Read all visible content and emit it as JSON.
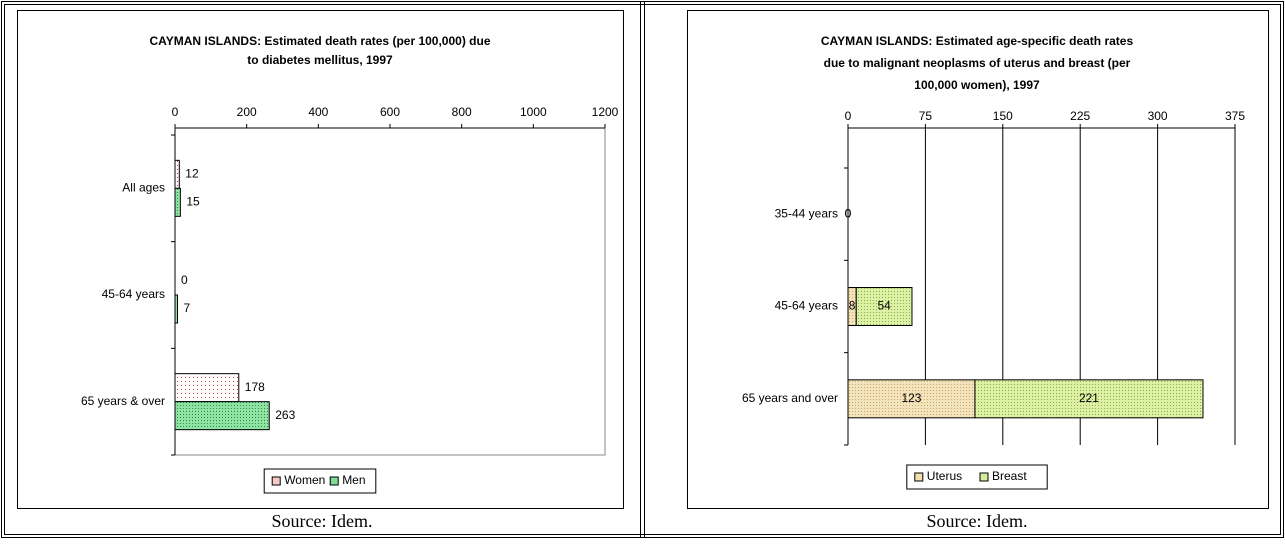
{
  "chart_data": [
    {
      "type": "bar",
      "title": [
        "CAYMAN ISLANDS: Estimated death rates (per 100,000) due",
        "to diabetes mellitus, 1997"
      ],
      "categories": [
        "All ages",
        "45-64 years",
        "65 years & over"
      ],
      "series": [
        {
          "name": "Women",
          "color": "#f6c9c9",
          "values": [
            12,
            0,
            178
          ]
        },
        {
          "name": "Men",
          "color": "#7fdc95",
          "values": [
            15,
            7,
            263
          ]
        }
      ],
      "xlim": [
        0,
        1200
      ],
      "xticks": [
        0,
        200,
        400,
        600,
        800,
        1000,
        1200
      ],
      "grid": false,
      "legend": "bottom"
    },
    {
      "type": "stacked_bar",
      "title": [
        "CAYMAN ISLANDS: Estimated age-specific death rates",
        "due to malignant neoplasms of uterus and breast (per",
        "100,000 women), 1997"
      ],
      "categories": [
        "35-44 years",
        "45-64 years",
        "65 years and over"
      ],
      "series": [
        {
          "name": "Uterus",
          "color": "#f2dfb0",
          "values": [
            0,
            8,
            123
          ]
        },
        {
          "name": "Breast",
          "color": "#d6ee9c",
          "values": [
            0,
            54,
            221
          ]
        }
      ],
      "xlim": [
        0,
        375
      ],
      "xticks": [
        0,
        75,
        150,
        225,
        300,
        375
      ],
      "grid": true,
      "legend": "bottom"
    }
  ],
  "captions": [
    "Source: Idem.",
    "Source: Idem."
  ]
}
